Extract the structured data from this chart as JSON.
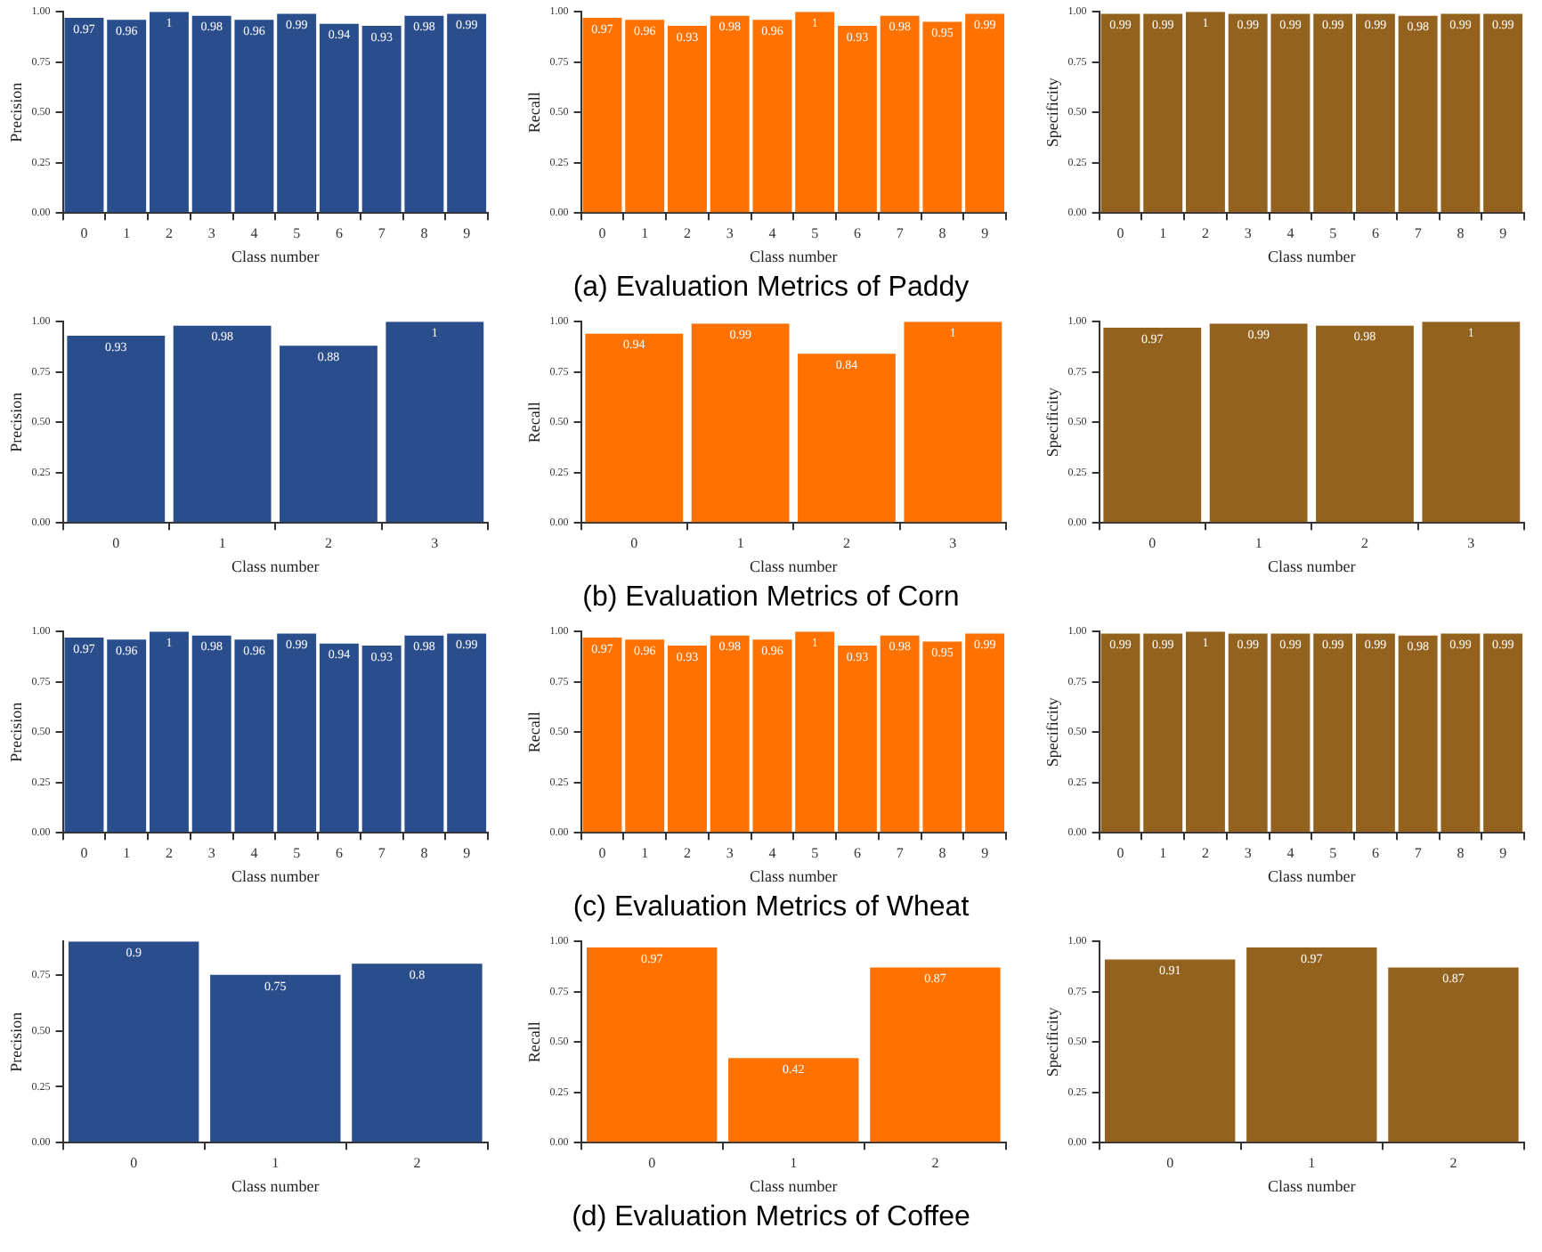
{
  "chart_data": [
    {
      "type": "bar",
      "xlabel": "Class number",
      "ylabel": "Precision",
      "categories": [
        "0",
        "1",
        "2",
        "3",
        "4",
        "5",
        "6",
        "7",
        "8",
        "9"
      ],
      "values": [
        0.97,
        0.96,
        1,
        0.98,
        0.96,
        0.99,
        0.94,
        0.93,
        0.98,
        0.99
      ],
      "color": "#2a4d8b",
      "ylim": [
        0,
        1
      ],
      "yticks": [
        {
          "value": 0,
          "label": "0.00"
        },
        {
          "value": 0.25,
          "label": "0.25"
        },
        {
          "value": 0.5,
          "label": "0.50"
        },
        {
          "value": 0.75,
          "label": "0.75"
        },
        {
          "value": 1,
          "label": "1.00"
        }
      ],
      "data_labels": true,
      "grid": false
    },
    {
      "type": "bar",
      "xlabel": "Class number",
      "ylabel": "Recall",
      "categories": [
        "0",
        "1",
        "2",
        "3",
        "4",
        "5",
        "6",
        "7",
        "8",
        "9"
      ],
      "values": [
        0.97,
        0.96,
        0.93,
        0.98,
        0.96,
        1,
        0.93,
        0.98,
        0.95,
        0.99
      ],
      "color": "#ff7100",
      "ylim": [
        0,
        1
      ],
      "yticks": [
        {
          "value": 0,
          "label": "0.00"
        },
        {
          "value": 0.25,
          "label": "0.25"
        },
        {
          "value": 0.5,
          "label": "0.50"
        },
        {
          "value": 0.75,
          "label": "0.75"
        },
        {
          "value": 1,
          "label": "1.00"
        }
      ],
      "data_labels": true,
      "grid": false,
      "annotations": [
        "(a) Evaluation Metrics of Paddy"
      ]
    },
    {
      "type": "bar",
      "xlabel": "Class number",
      "ylabel": "Specificity",
      "categories": [
        "0",
        "1",
        "2",
        "3",
        "4",
        "5",
        "6",
        "7",
        "8",
        "9"
      ],
      "values": [
        0.99,
        0.99,
        1,
        0.99,
        0.99,
        0.99,
        0.99,
        0.98,
        0.99,
        0.99
      ],
      "color": "#94621f",
      "ylim": [
        0,
        1
      ],
      "yticks": [
        {
          "value": 0,
          "label": "0.00"
        },
        {
          "value": 0.25,
          "label": "0.25"
        },
        {
          "value": 0.5,
          "label": "0.50"
        },
        {
          "value": 0.75,
          "label": "0.75"
        },
        {
          "value": 1,
          "label": "1.00"
        }
      ],
      "data_labels": true,
      "grid": false
    },
    {
      "type": "bar",
      "xlabel": "Class number",
      "ylabel": "Precision",
      "categories": [
        "0",
        "1",
        "2",
        "3"
      ],
      "values": [
        0.93,
        0.98,
        0.88,
        1
      ],
      "color": "#2a4d8b",
      "ylim": [
        0,
        1
      ],
      "yticks": [
        {
          "value": 0,
          "label": "0.00"
        },
        {
          "value": 0.25,
          "label": "0.25"
        },
        {
          "value": 0.5,
          "label": "0.50"
        },
        {
          "value": 0.75,
          "label": "0.75"
        },
        {
          "value": 1,
          "label": "1.00"
        }
      ],
      "data_labels": true,
      "grid": false
    },
    {
      "type": "bar",
      "xlabel": "Class number",
      "ylabel": "Recall",
      "categories": [
        "0",
        "1",
        "2",
        "3"
      ],
      "values": [
        0.94,
        0.99,
        0.84,
        1
      ],
      "color": "#ff7100",
      "ylim": [
        0,
        1
      ],
      "yticks": [
        {
          "value": 0,
          "label": "0.00"
        },
        {
          "value": 0.25,
          "label": "0.25"
        },
        {
          "value": 0.5,
          "label": "0.50"
        },
        {
          "value": 0.75,
          "label": "0.75"
        },
        {
          "value": 1,
          "label": "1.00"
        }
      ],
      "data_labels": true,
      "grid": false,
      "annotations": [
        "(b)  Evaluation Metrics of Corn"
      ]
    },
    {
      "type": "bar",
      "xlabel": "Class number",
      "ylabel": "Specificity",
      "categories": [
        "0",
        "1",
        "2",
        "3"
      ],
      "values": [
        0.97,
        0.99,
        0.98,
        1
      ],
      "color": "#94621f",
      "ylim": [
        0,
        1
      ],
      "yticks": [
        {
          "value": 0,
          "label": "0.00"
        },
        {
          "value": 0.25,
          "label": "0.25"
        },
        {
          "value": 0.5,
          "label": "0.50"
        },
        {
          "value": 0.75,
          "label": "0.75"
        },
        {
          "value": 1,
          "label": "1.00"
        }
      ],
      "data_labels": true,
      "grid": false
    },
    {
      "type": "bar",
      "xlabel": "Class number",
      "ylabel": "Precision",
      "categories": [
        "0",
        "1",
        "2",
        "3",
        "4",
        "5",
        "6",
        "7",
        "8",
        "9"
      ],
      "values": [
        0.97,
        0.96,
        1,
        0.98,
        0.96,
        0.99,
        0.94,
        0.93,
        0.98,
        0.99
      ],
      "color": "#2a4d8b",
      "ylim": [
        0,
        1
      ],
      "yticks": [
        {
          "value": 0,
          "label": "0.00"
        },
        {
          "value": 0.25,
          "label": "0.25"
        },
        {
          "value": 0.5,
          "label": "0.50"
        },
        {
          "value": 0.75,
          "label": "0.75"
        },
        {
          "value": 1,
          "label": "1.00"
        }
      ],
      "data_labels": true,
      "grid": false
    },
    {
      "type": "bar",
      "xlabel": "Class number",
      "ylabel": "Recall",
      "categories": [
        "0",
        "1",
        "2",
        "3",
        "4",
        "5",
        "6",
        "7",
        "8",
        "9"
      ],
      "values": [
        0.97,
        0.96,
        0.93,
        0.98,
        0.96,
        1,
        0.93,
        0.98,
        0.95,
        0.99
      ],
      "color": "#ff7100",
      "ylim": [
        0,
        1
      ],
      "yticks": [
        {
          "value": 0,
          "label": "0.00"
        },
        {
          "value": 0.25,
          "label": "0.25"
        },
        {
          "value": 0.5,
          "label": "0.50"
        },
        {
          "value": 0.75,
          "label": "0.75"
        },
        {
          "value": 1,
          "label": "1.00"
        }
      ],
      "data_labels": true,
      "grid": false,
      "annotations": [
        "(c)  Evaluation Metrics of Wheat"
      ]
    },
    {
      "type": "bar",
      "xlabel": "Class number",
      "ylabel": "Specificity",
      "categories": [
        "0",
        "1",
        "2",
        "3",
        "4",
        "5",
        "6",
        "7",
        "8",
        "9"
      ],
      "values": [
        0.99,
        0.99,
        1,
        0.99,
        0.99,
        0.99,
        0.99,
        0.98,
        0.99,
        0.99
      ],
      "color": "#94621f",
      "ylim": [
        0,
        1
      ],
      "yticks": [
        {
          "value": 0,
          "label": "0.00"
        },
        {
          "value": 0.25,
          "label": "0.25"
        },
        {
          "value": 0.5,
          "label": "0.50"
        },
        {
          "value": 0.75,
          "label": "0.75"
        },
        {
          "value": 1,
          "label": "1.00"
        }
      ],
      "data_labels": true,
      "grid": false
    },
    {
      "type": "bar",
      "xlabel": "Class number",
      "ylabel": "Precision",
      "categories": [
        "0",
        "1",
        "2"
      ],
      "values": [
        0.9,
        0.75,
        0.8
      ],
      "color": "#2a4d8b",
      "ylim": [
        0,
        0.9
      ],
      "yticks": [
        {
          "value": 0,
          "label": "0.00"
        },
        {
          "value": 0.25,
          "label": "0.25"
        },
        {
          "value": 0.5,
          "label": "0.50"
        },
        {
          "value": 0.75,
          "label": "0.75"
        }
      ],
      "data_labels": true,
      "grid": false
    },
    {
      "type": "bar",
      "xlabel": "Class number",
      "ylabel": "Recall",
      "categories": [
        "0",
        "1",
        "2"
      ],
      "values": [
        0.97,
        0.42,
        0.87
      ],
      "color": "#ff7100",
      "ylim": [
        0,
        1
      ],
      "yticks": [
        {
          "value": 0,
          "label": "0.00"
        },
        {
          "value": 0.25,
          "label": "0.25"
        },
        {
          "value": 0.5,
          "label": "0.50"
        },
        {
          "value": 0.75,
          "label": "0.75"
        },
        {
          "value": 1,
          "label": "1.00"
        }
      ],
      "data_labels": true,
      "grid": false,
      "annotations": [
        "(d)  Evaluation Metrics of Coffee"
      ]
    },
    {
      "type": "bar",
      "xlabel": "Class number",
      "ylabel": "Specificity",
      "categories": [
        "0",
        "1",
        "2"
      ],
      "values": [
        0.91,
        0.97,
        0.87
      ],
      "color": "#94621f",
      "ylim": [
        0,
        1
      ],
      "yticks": [
        {
          "value": 0,
          "label": "0.00"
        },
        {
          "value": 0.25,
          "label": "0.25"
        },
        {
          "value": 0.5,
          "label": "0.50"
        },
        {
          "value": 0.75,
          "label": "0.75"
        },
        {
          "value": 1,
          "label": "1.00"
        }
      ],
      "data_labels": true,
      "grid": false
    }
  ]
}
